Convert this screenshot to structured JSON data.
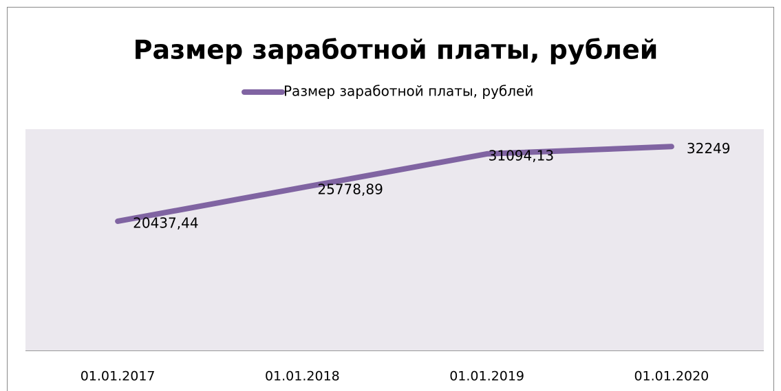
{
  "chart_data": {
    "type": "line",
    "title": "Размер заработной платы, рублей",
    "categories": [
      "01.01.2017",
      "01.01.2018",
      "01.01.2019",
      "01.01.2020"
    ],
    "series": [
      {
        "name": "Размер заработной платы, рублей",
        "color": "#8064a2",
        "values": [
          20437.44,
          25778.89,
          31094.13,
          32249
        ],
        "value_labels": [
          "20437,44",
          "25778,89",
          "31094,13",
          "32249"
        ]
      }
    ],
    "ylim": [
      0,
      35000
    ]
  }
}
